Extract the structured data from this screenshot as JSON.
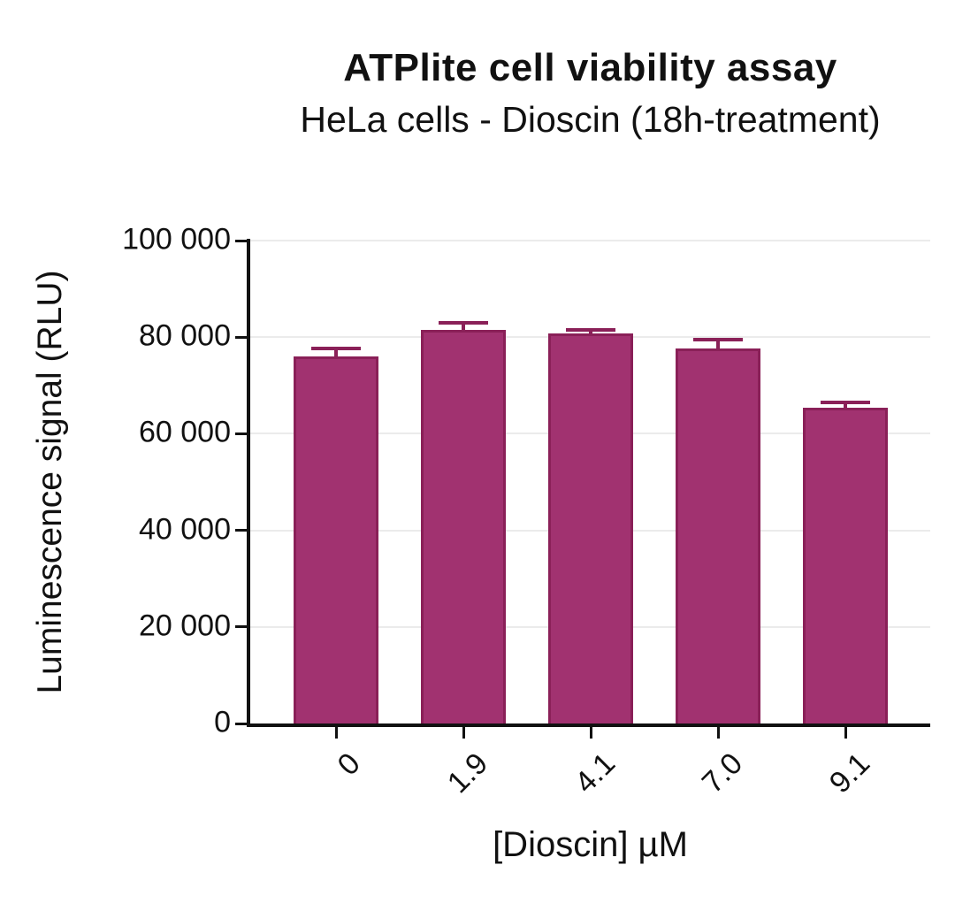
{
  "chart_data": {
    "type": "bar",
    "title": "ATPlite cell viability assay",
    "subtitle": "HeLa cells - Dioscin (18h-treatment)",
    "xlabel": "[Dioscin] µM",
    "ylabel": "Luminescence signal (RLU)",
    "categories": [
      "0",
      "1.9",
      "4.1",
      "7.0",
      "9.1"
    ],
    "values": [
      76100,
      81500,
      80800,
      77700,
      65400
    ],
    "errors_up": [
      1500,
      1500,
      700,
      1800,
      1000
    ],
    "ylim": [
      0,
      100000
    ],
    "y_ticks": [
      {
        "value": 0,
        "label": "0"
      },
      {
        "value": 20000,
        "label": "20 000"
      },
      {
        "value": 40000,
        "label": "40 000"
      },
      {
        "value": 60000,
        "label": "60 000"
      },
      {
        "value": 80000,
        "label": "80 000"
      },
      {
        "value": 100000,
        "label": "100 000"
      }
    ],
    "grid": "horizontal",
    "legend": "none",
    "colors": {
      "bar_fill": "#A13270",
      "bar_border": "#8A2058",
      "error_bar": "#8A2058",
      "axis": "#111111",
      "gridline": "#EBEBEB",
      "background": "#FFFFFF",
      "text": "#111111"
    }
  }
}
